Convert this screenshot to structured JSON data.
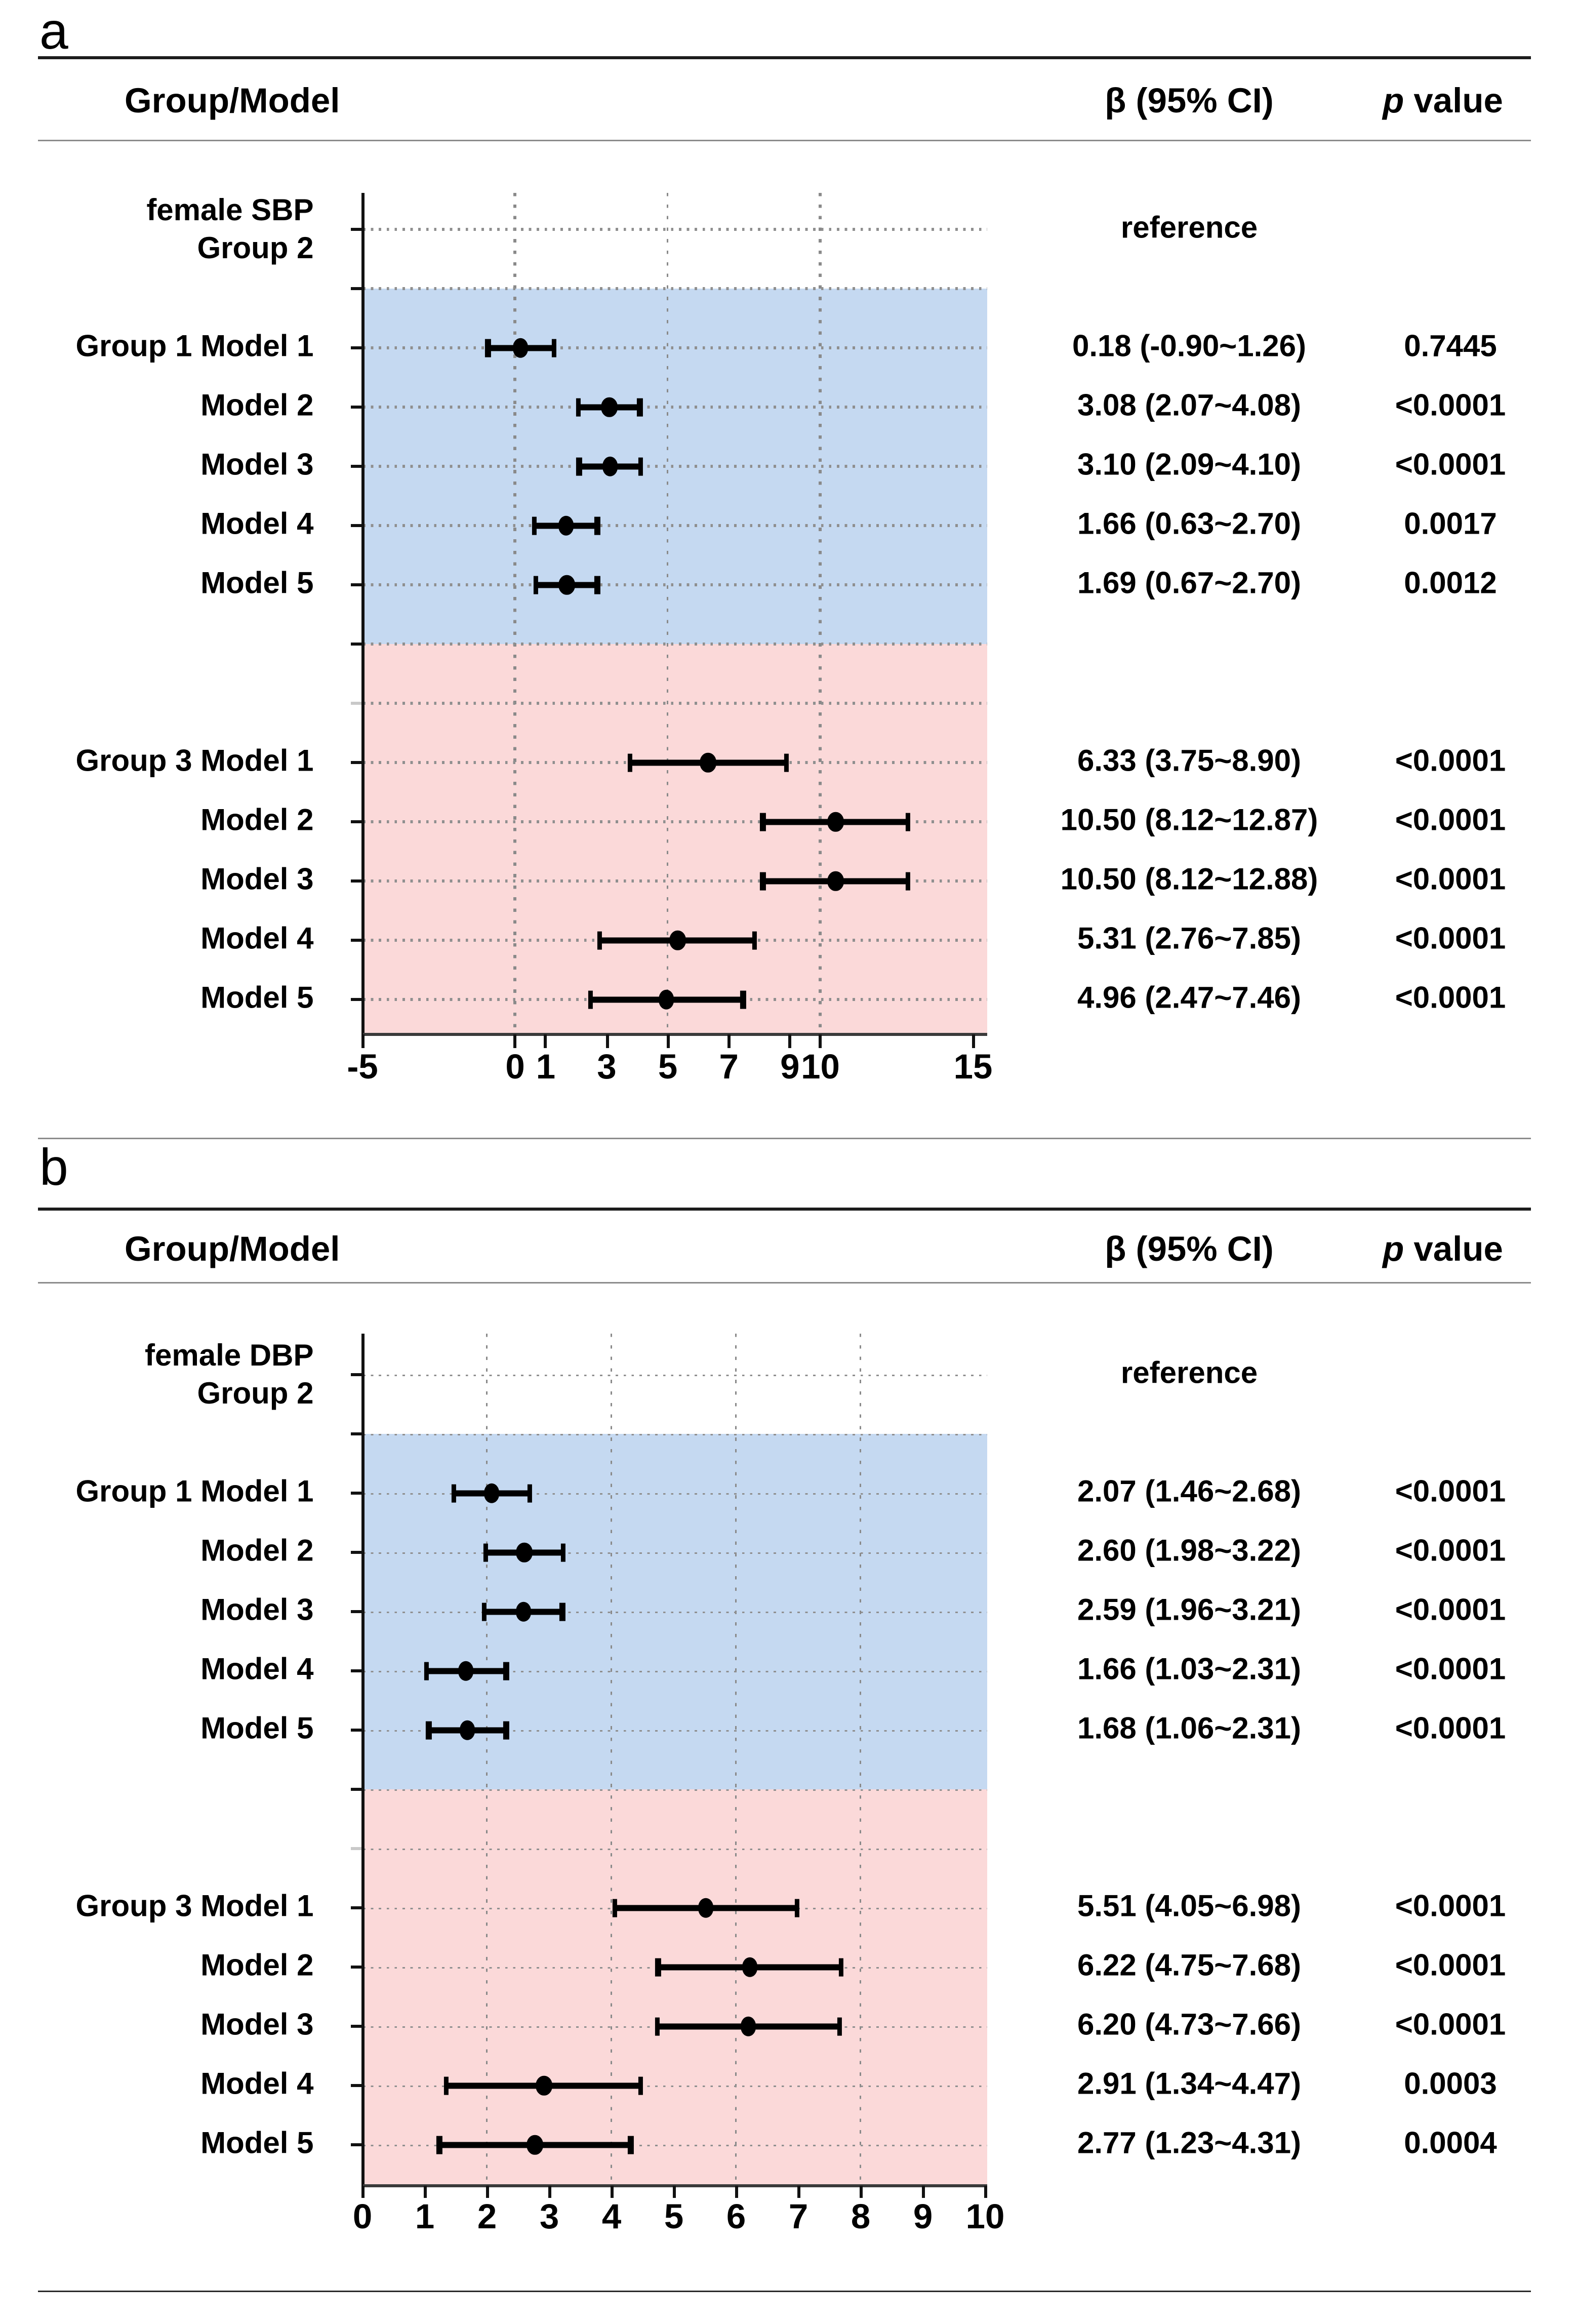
{
  "figure": {
    "panels": [
      {
        "panel_label": "a",
        "header": {
          "group_model": "Group/Model",
          "beta_ci": "β (95% CI)",
          "p_italic": "p",
          "p_rest": " value"
        },
        "reference_label": "reference"
      },
      {
        "panel_label": "b",
        "header": {
          "group_model": "Group/Model",
          "beta_ci": "β (95% CI)",
          "p_italic": "p",
          "p_rest": " value"
        },
        "reference_label": "reference"
      }
    ]
  },
  "chart_data": [
    {
      "type": "forest",
      "title": "female SBP",
      "reference_group": "Group 2",
      "xlim": [
        -5,
        15
      ],
      "xticks": [
        -5,
        0,
        1,
        3,
        5,
        7,
        9,
        10,
        15
      ],
      "gridlines": [
        0,
        5,
        10
      ],
      "grid_style": "dashed-vertical, dotted-row-lines",
      "legend_position": "none",
      "groups": [
        {
          "name": "Group 1",
          "band_color": "#c5d9f1",
          "rows": [
            {
              "model": "Model 1",
              "beta": 0.18,
              "ci_low": -0.9,
              "ci_high": 1.26,
              "beta_text": "0.18 (-0.90~1.26)",
              "p_text": "0.7445"
            },
            {
              "model": "Model 2",
              "beta": 3.08,
              "ci_low": 2.07,
              "ci_high": 4.08,
              "beta_text": "3.08 (2.07~4.08)",
              "p_text": "<0.0001"
            },
            {
              "model": "Model 3",
              "beta": 3.1,
              "ci_low": 2.09,
              "ci_high": 4.1,
              "beta_text": "3.10 (2.09~4.10)",
              "p_text": "<0.0001"
            },
            {
              "model": "Model 4",
              "beta": 1.66,
              "ci_low": 0.63,
              "ci_high": 2.7,
              "beta_text": "1.66 (0.63~2.70)",
              "p_text": "0.0017"
            },
            {
              "model": "Model 5",
              "beta": 1.69,
              "ci_low": 0.67,
              "ci_high": 2.7,
              "beta_text": "1.69 (0.67~2.70)",
              "p_text": "0.0012"
            }
          ]
        },
        {
          "name": "Group 3",
          "band_color": "#fbd9d9",
          "rows": [
            {
              "model": "Model 1",
              "beta": 6.33,
              "ci_low": 3.75,
              "ci_high": 8.9,
              "beta_text": "6.33 (3.75~8.90)",
              "p_text": "<0.0001"
            },
            {
              "model": "Model 2",
              "beta": 10.5,
              "ci_low": 8.12,
              "ci_high": 12.87,
              "beta_text": "10.50 (8.12~12.87)",
              "p_text": "<0.0001"
            },
            {
              "model": "Model 3",
              "beta": 10.5,
              "ci_low": 8.12,
              "ci_high": 12.88,
              "beta_text": "10.50 (8.12~12.88)",
              "p_text": "<0.0001"
            },
            {
              "model": "Model 4",
              "beta": 5.31,
              "ci_low": 2.76,
              "ci_high": 7.85,
              "beta_text": "5.31 (2.76~7.85)",
              "p_text": "<0.0001"
            },
            {
              "model": "Model 5",
              "beta": 4.96,
              "ci_low": 2.47,
              "ci_high": 7.46,
              "beta_text": "4.96 (2.47~7.46)",
              "p_text": "<0.0001"
            }
          ]
        }
      ]
    },
    {
      "type": "forest",
      "title": "female DBP",
      "reference_group": "Group 2",
      "xlim": [
        0,
        10
      ],
      "xticks": [
        0,
        1,
        2,
        3,
        4,
        5,
        6,
        7,
        8,
        9,
        10
      ],
      "gridlines": [
        2,
        4,
        6,
        8
      ],
      "grid_style": "dashed-vertical, dotted-row-lines",
      "legend_position": "none",
      "groups": [
        {
          "name": "Group 1",
          "band_color": "#c5d9f1",
          "rows": [
            {
              "model": "Model 1",
              "beta": 2.07,
              "ci_low": 1.46,
              "ci_high": 2.68,
              "beta_text": "2.07 (1.46~2.68)",
              "p_text": "<0.0001"
            },
            {
              "model": "Model 2",
              "beta": 2.6,
              "ci_low": 1.98,
              "ci_high": 3.22,
              "beta_text": "2.60 (1.98~3.22)",
              "p_text": "<0.0001"
            },
            {
              "model": "Model 3",
              "beta": 2.59,
              "ci_low": 1.96,
              "ci_high": 3.21,
              "beta_text": "2.59 (1.96~3.21)",
              "p_text": "<0.0001"
            },
            {
              "model": "Model 4",
              "beta": 1.66,
              "ci_low": 1.03,
              "ci_high": 2.31,
              "beta_text": "1.66 (1.03~2.31)",
              "p_text": "<0.0001"
            },
            {
              "model": "Model 5",
              "beta": 1.68,
              "ci_low": 1.06,
              "ci_high": 2.31,
              "beta_text": "1.68 (1.06~2.31)",
              "p_text": "<0.0001"
            }
          ]
        },
        {
          "name": "Group 3",
          "band_color": "#fbd9d9",
          "rows": [
            {
              "model": "Model 1",
              "beta": 5.51,
              "ci_low": 4.05,
              "ci_high": 6.98,
              "beta_text": "5.51 (4.05~6.98)",
              "p_text": "<0.0001"
            },
            {
              "model": "Model 2",
              "beta": 6.22,
              "ci_low": 4.75,
              "ci_high": 7.68,
              "beta_text": "6.22 (4.75~7.68)",
              "p_text": "<0.0001"
            },
            {
              "model": "Model 3",
              "beta": 6.2,
              "ci_low": 4.73,
              "ci_high": 7.66,
              "beta_text": "6.20 (4.73~7.66)",
              "p_text": "<0.0001"
            },
            {
              "model": "Model 4",
              "beta": 2.91,
              "ci_low": 1.34,
              "ci_high": 4.47,
              "beta_text": "2.91 (1.34~4.47)",
              "p_text": "0.0003"
            },
            {
              "model": "Model 5",
              "beta": 2.77,
              "ci_low": 1.23,
              "ci_high": 4.31,
              "beta_text": "2.77 (1.23~4.31)",
              "p_text": "0.0004"
            }
          ]
        }
      ]
    }
  ]
}
